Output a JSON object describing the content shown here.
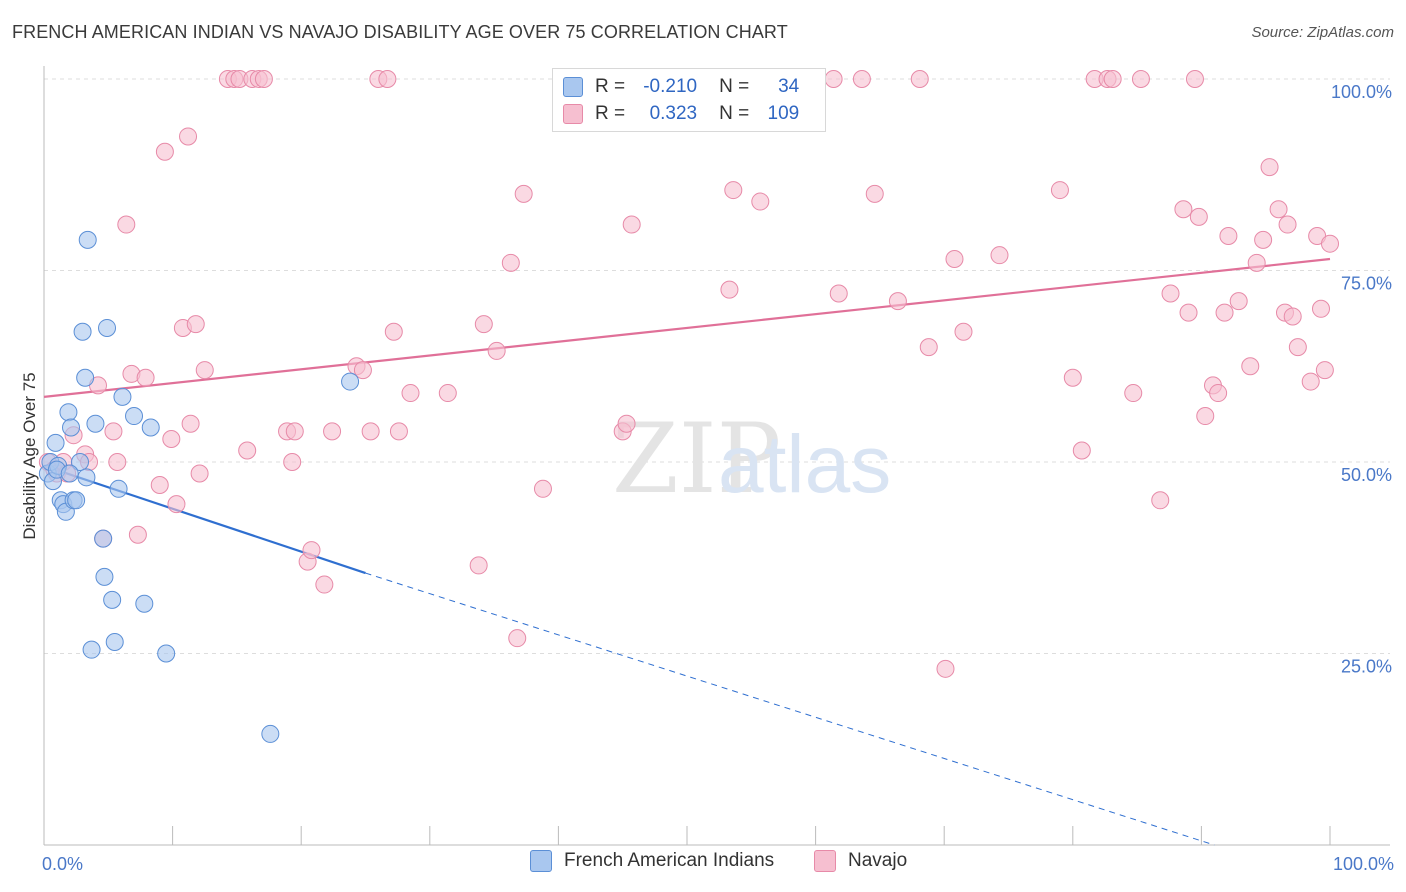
{
  "title": "FRENCH AMERICAN INDIAN VS NAVAJO DISABILITY AGE OVER 75 CORRELATION CHART",
  "source": "Source: ZipAtlas.com",
  "watermark": {
    "zip": "ZIP",
    "atlas": "atlas"
  },
  "legend": {
    "rows": [
      {
        "r_label": "R = ",
        "r_value": "-0.210",
        "n_label": "N = ",
        "n_value": "34"
      },
      {
        "r_label": "R = ",
        "r_value": "0.323",
        "n_label": "N = ",
        "n_value": "109"
      }
    ]
  },
  "colors": {
    "blue_fill": "#a9c7ef",
    "blue_stroke": "#5b8fd6",
    "blue_line": "#2f6fd0",
    "pink_fill": "#f6bfd0",
    "pink_stroke": "#e78aa8",
    "pink_line": "#e07098",
    "tick_text": "#4a78c8",
    "grid": "#dddddd"
  },
  "chart_data": {
    "type": "scatter",
    "ylabel": "Disability Age Over 75",
    "xlim": [
      0,
      100
    ],
    "ylim": [
      0,
      100
    ],
    "x_ticks": [
      "0.0%",
      "100.0%"
    ],
    "y_ticks": [
      {
        "value": 25,
        "label": "25.0%"
      },
      {
        "value": 50,
        "label": "50.0%"
      },
      {
        "value": 75,
        "label": "75.0%"
      },
      {
        "value": 100,
        "label": "100.0%"
      }
    ],
    "legend_placement": "top-center",
    "series": [
      {
        "name": "French American Indians",
        "color": "#a9c7ef",
        "trend": {
          "x0": 0,
          "y0": 49.5,
          "x1": 25,
          "y1": 35.5,
          "dashed_to_x": 91,
          "dashed_to_y": 0
        },
        "points": [
          [
            0.3,
            48.5
          ],
          [
            0.5,
            50.0
          ],
          [
            0.7,
            47.5
          ],
          [
            0.9,
            52.5
          ],
          [
            1.1,
            49.5
          ],
          [
            1.3,
            45.0
          ],
          [
            1.5,
            44.5
          ],
          [
            1.7,
            43.5
          ],
          [
            1.9,
            56.5
          ],
          [
            2.1,
            54.5
          ],
          [
            2.3,
            45.0
          ],
          [
            2.5,
            45.0
          ],
          [
            2.8,
            50.0
          ],
          [
            3.0,
            67.0
          ],
          [
            3.2,
            61.0
          ],
          [
            3.3,
            48.0
          ],
          [
            3.4,
            79.0
          ],
          [
            3.7,
            25.5
          ],
          [
            4.0,
            55.0
          ],
          [
            4.6,
            40.0
          ],
          [
            4.7,
            35.0
          ],
          [
            4.9,
            67.5
          ],
          [
            5.3,
            32.0
          ],
          [
            5.5,
            26.5
          ],
          [
            5.8,
            46.5
          ],
          [
            6.1,
            58.5
          ],
          [
            7.0,
            56.0
          ],
          [
            7.8,
            31.5
          ],
          [
            8.3,
            54.5
          ],
          [
            9.5,
            25.0
          ],
          [
            17.6,
            14.5
          ],
          [
            23.8,
            60.5
          ],
          [
            1.0,
            49.0
          ],
          [
            2.0,
            48.5
          ]
        ]
      },
      {
        "name": "Navajo",
        "color": "#f6bfd0",
        "trend": {
          "x0": 0,
          "y0": 58.5,
          "x1": 100,
          "y1": 76.5
        },
        "points": [
          [
            0.3,
            50.0
          ],
          [
            0.8,
            49.0
          ],
          [
            1.0,
            48.5
          ],
          [
            1.5,
            50.0
          ],
          [
            1.8,
            48.5
          ],
          [
            2.3,
            53.5
          ],
          [
            3.2,
            51.0
          ],
          [
            3.5,
            50.0
          ],
          [
            4.2,
            60.0
          ],
          [
            4.6,
            40.0
          ],
          [
            5.4,
            54.0
          ],
          [
            5.7,
            50.0
          ],
          [
            6.4,
            81.0
          ],
          [
            6.8,
            61.5
          ],
          [
            7.3,
            40.5
          ],
          [
            7.9,
            61.0
          ],
          [
            9.0,
            47.0
          ],
          [
            9.4,
            90.5
          ],
          [
            9.9,
            53.0
          ],
          [
            10.3,
            44.5
          ],
          [
            10.8,
            67.5
          ],
          [
            11.2,
            92.5
          ],
          [
            11.4,
            55.0
          ],
          [
            11.8,
            68.0
          ],
          [
            12.1,
            48.5
          ],
          [
            12.5,
            62.0
          ],
          [
            14.3,
            100.0
          ],
          [
            14.8,
            100.0
          ],
          [
            15.2,
            100.0
          ],
          [
            15.8,
            51.5
          ],
          [
            16.2,
            100.0
          ],
          [
            16.7,
            100.0
          ],
          [
            17.1,
            100.0
          ],
          [
            18.9,
            54.0
          ],
          [
            19.3,
            50.0
          ],
          [
            19.5,
            54.0
          ],
          [
            20.5,
            37.0
          ],
          [
            20.8,
            38.5
          ],
          [
            21.8,
            34.0
          ],
          [
            22.4,
            54.0
          ],
          [
            24.3,
            62.5
          ],
          [
            24.8,
            62.0
          ],
          [
            25.4,
            54.0
          ],
          [
            26.0,
            100.0
          ],
          [
            26.7,
            100.0
          ],
          [
            27.2,
            67.0
          ],
          [
            27.6,
            54.0
          ],
          [
            28.5,
            59.0
          ],
          [
            31.4,
            59.0
          ],
          [
            33.8,
            36.5
          ],
          [
            34.2,
            68.0
          ],
          [
            35.2,
            64.5
          ],
          [
            36.3,
            76.0
          ],
          [
            36.8,
            27.0
          ],
          [
            37.3,
            85.0
          ],
          [
            38.8,
            46.5
          ],
          [
            41.3,
            100.0
          ],
          [
            45.0,
            54.0
          ],
          [
            45.3,
            55.0
          ],
          [
            45.7,
            81.0
          ],
          [
            52.7,
            100.0
          ],
          [
            53.3,
            72.5
          ],
          [
            53.6,
            85.5
          ],
          [
            54.7,
            100.0
          ],
          [
            55.7,
            84.0
          ],
          [
            61.4,
            100.0
          ],
          [
            61.8,
            72.0
          ],
          [
            63.6,
            100.0
          ],
          [
            64.6,
            85.0
          ],
          [
            66.4,
            71.0
          ],
          [
            68.1,
            100.0
          ],
          [
            68.8,
            65.0
          ],
          [
            70.1,
            23.0
          ],
          [
            70.8,
            76.5
          ],
          [
            71.5,
            67.0
          ],
          [
            74.3,
            77.0
          ],
          [
            79.0,
            85.5
          ],
          [
            80.0,
            61.0
          ],
          [
            80.7,
            51.5
          ],
          [
            81.7,
            100.0
          ],
          [
            82.7,
            100.0
          ],
          [
            83.1,
            100.0
          ],
          [
            84.7,
            59.0
          ],
          [
            85.3,
            100.0
          ],
          [
            86.8,
            45.0
          ],
          [
            87.6,
            72.0
          ],
          [
            88.6,
            83.0
          ],
          [
            89.0,
            69.5
          ],
          [
            89.5,
            100.0
          ],
          [
            89.8,
            82.0
          ],
          [
            90.3,
            56.0
          ],
          [
            90.9,
            60.0
          ],
          [
            91.3,
            59.0
          ],
          [
            91.8,
            69.5
          ],
          [
            92.1,
            79.5
          ],
          [
            92.9,
            71.0
          ],
          [
            93.8,
            62.5
          ],
          [
            94.3,
            76.0
          ],
          [
            94.8,
            79.0
          ],
          [
            95.3,
            88.5
          ],
          [
            96.0,
            83.0
          ],
          [
            96.5,
            69.5
          ],
          [
            96.7,
            81.0
          ],
          [
            97.1,
            69.0
          ],
          [
            97.5,
            65.0
          ],
          [
            98.5,
            60.5
          ],
          [
            99.0,
            79.5
          ],
          [
            99.3,
            70.0
          ],
          [
            99.6,
            62.0
          ],
          [
            100.0,
            78.5
          ]
        ]
      }
    ]
  }
}
